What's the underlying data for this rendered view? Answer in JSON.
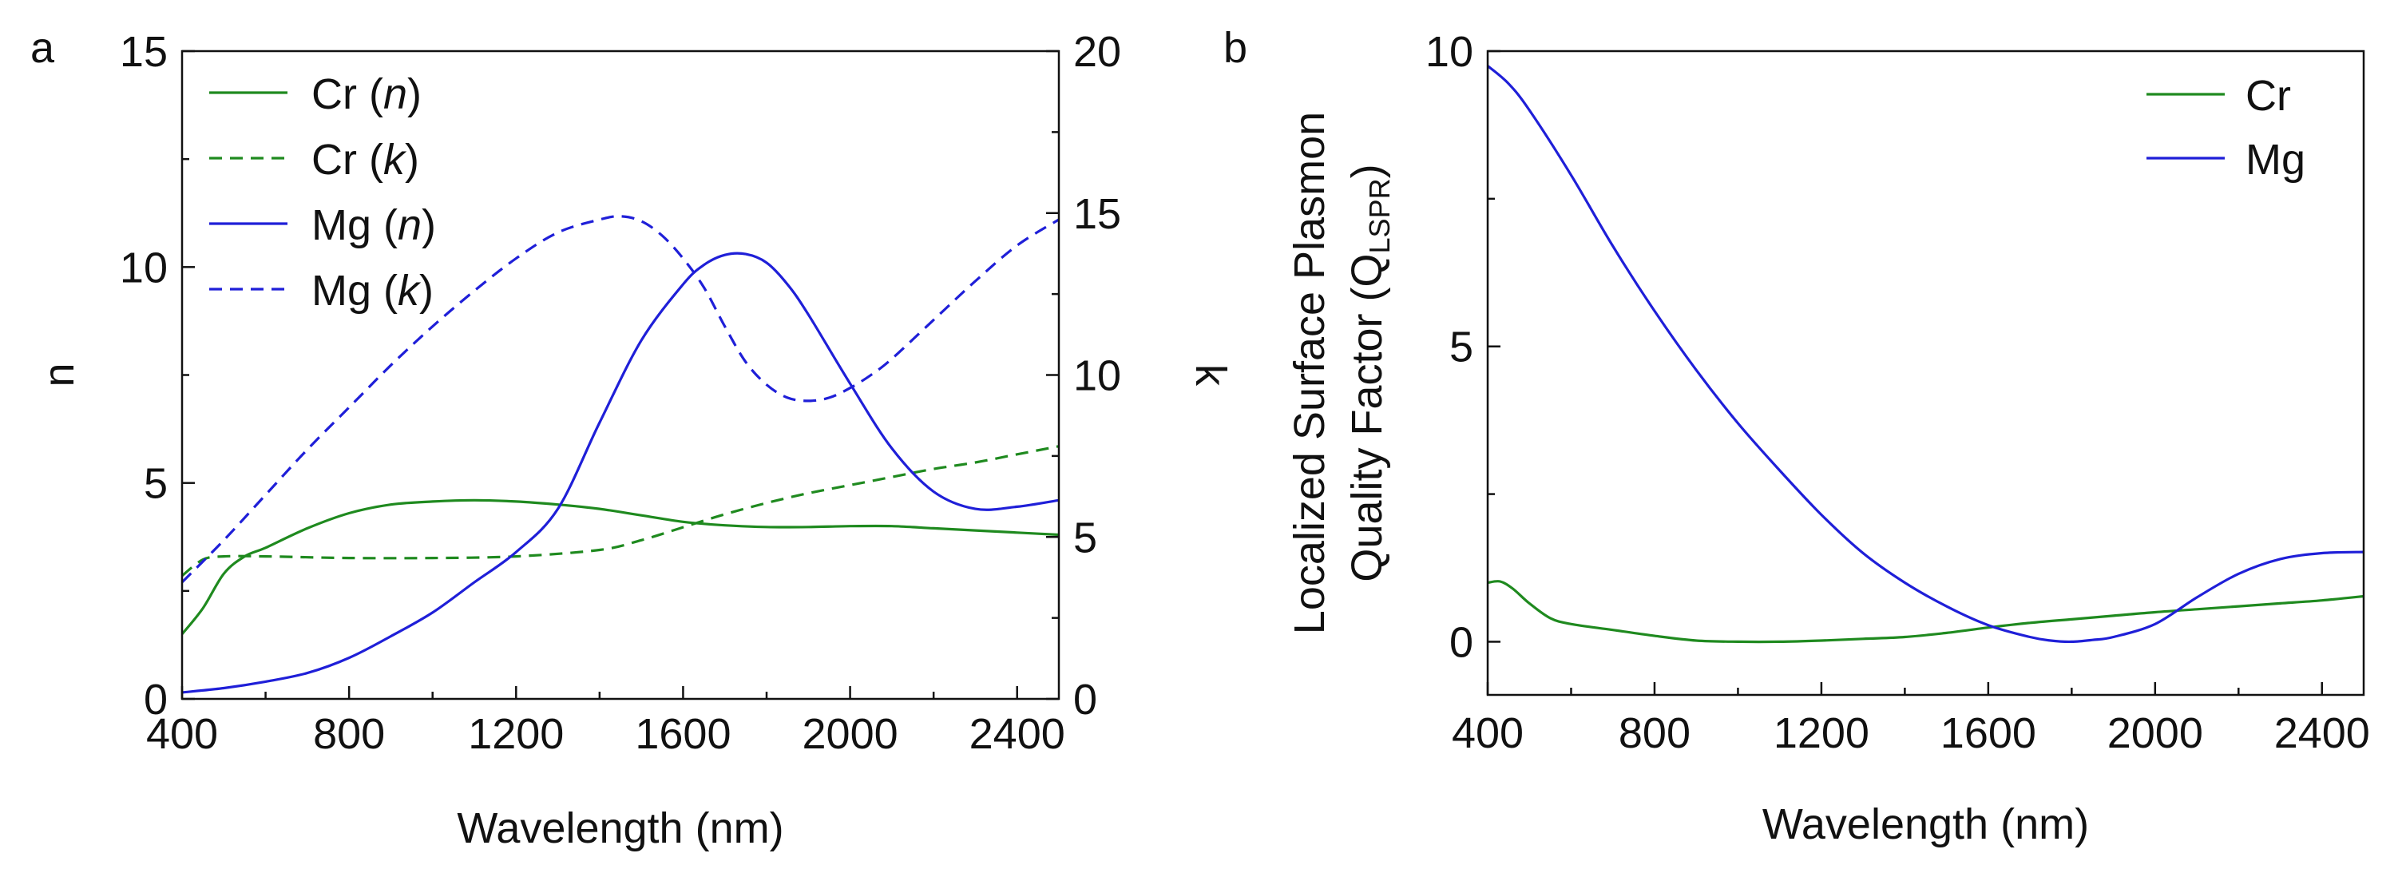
{
  "figure": {
    "panel_a_label": "a",
    "panel_b_label": "b"
  },
  "chart_data": [
    {
      "id": "a",
      "type": "line",
      "xlabel": "Wavelength (nm)",
      "ylabel": "n",
      "y2label": "k",
      "xlim": [
        400,
        2500
      ],
      "ylim": [
        0,
        15
      ],
      "y2lim": [
        0,
        20
      ],
      "xticks": [
        400,
        800,
        1200,
        1600,
        2000,
        2400
      ],
      "yticks": [
        0,
        5,
        10,
        15
      ],
      "y2ticks": [
        0,
        5,
        10,
        15,
        20
      ],
      "legend_position": "top-left",
      "series": [
        {
          "name": "Cr",
          "qualifier": "n",
          "axis": "left",
          "style": "solid",
          "color": "#1f8a1f",
          "x": [
            400,
            450,
            500,
            550,
            600,
            700,
            800,
            900,
            1000,
            1100,
            1200,
            1300,
            1400,
            1500,
            1600,
            1700,
            1800,
            1900,
            2000,
            2100,
            2200,
            2300,
            2400,
            2500
          ],
          "y": [
            1.5,
            2.1,
            2.9,
            3.3,
            3.5,
            3.95,
            4.3,
            4.5,
            4.57,
            4.6,
            4.57,
            4.5,
            4.4,
            4.25,
            4.1,
            4.02,
            3.98,
            3.98,
            4.0,
            4.0,
            3.95,
            3.9,
            3.85,
            3.8
          ]
        },
        {
          "name": "Cr",
          "qualifier": "k",
          "axis": "right",
          "style": "dashed",
          "color": "#1f8a1f",
          "x": [
            400,
            450,
            500,
            600,
            800,
            1000,
            1200,
            1400,
            1500,
            1600,
            1700,
            1800,
            1900,
            2000,
            2100,
            2200,
            2300,
            2400,
            2500
          ],
          "y": [
            3.8,
            4.3,
            4.4,
            4.4,
            4.35,
            4.35,
            4.4,
            4.6,
            4.9,
            5.3,
            5.7,
            6.05,
            6.35,
            6.6,
            6.85,
            7.1,
            7.3,
            7.55,
            7.8
          ]
        },
        {
          "name": "Mg",
          "qualifier": "n",
          "axis": "left",
          "style": "solid",
          "color": "#1f1fd8",
          "x": [
            400,
            500,
            600,
            700,
            800,
            900,
            1000,
            1100,
            1200,
            1300,
            1400,
            1500,
            1600,
            1650,
            1700,
            1750,
            1800,
            1850,
            1900,
            2000,
            2100,
            2200,
            2300,
            2400,
            2500
          ],
          "y": [
            0.15,
            0.25,
            0.4,
            0.6,
            0.95,
            1.45,
            2.0,
            2.7,
            3.4,
            4.4,
            6.4,
            8.3,
            9.6,
            10.05,
            10.28,
            10.3,
            10.1,
            9.6,
            8.9,
            7.3,
            5.8,
            4.8,
            4.4,
            4.45,
            4.6
          ]
        },
        {
          "name": "Mg",
          "qualifier": "k",
          "axis": "right",
          "style": "dashed",
          "color": "#1f1fd8",
          "x": [
            400,
            500,
            600,
            700,
            800,
            900,
            1000,
            1100,
            1200,
            1300,
            1400,
            1450,
            1500,
            1550,
            1600,
            1650,
            1700,
            1750,
            1800,
            1850,
            1900,
            1950,
            2000,
            2050,
            2100,
            2200,
            2300,
            2400,
            2500
          ],
          "y": [
            3.6,
            4.9,
            6.3,
            7.7,
            9.0,
            10.3,
            11.5,
            12.6,
            13.6,
            14.4,
            14.8,
            14.9,
            14.75,
            14.3,
            13.6,
            12.7,
            11.5,
            10.4,
            9.7,
            9.3,
            9.2,
            9.3,
            9.6,
            10.0,
            10.5,
            11.7,
            12.9,
            14.0,
            14.8
          ]
        }
      ]
    },
    {
      "id": "b",
      "type": "line",
      "xlabel": "Wavelength (nm)",
      "ylabel_line1": "Localized Surface Plasmon",
      "ylabel_line2": "Quality Factor (Q",
      "ylabel_subscript": "LSPR",
      "ylabel_close": ")",
      "xlim": [
        400,
        2500
      ],
      "ylim": [
        -0.9,
        10
      ],
      "xticks": [
        400,
        800,
        1200,
        1600,
        2000,
        2400
      ],
      "yticks": [
        0,
        5,
        10
      ],
      "legend_position": "top-right",
      "series": [
        {
          "name": "Cr",
          "color": "#1f8a1f",
          "x": [
            400,
            430,
            460,
            500,
            550,
            600,
            700,
            800,
            900,
            1000,
            1100,
            1200,
            1300,
            1400,
            1500,
            1600,
            1700,
            1800,
            1900,
            2000,
            2100,
            2200,
            2300,
            2400,
            2500
          ],
          "y": [
            1.0,
            1.02,
            0.9,
            0.65,
            0.4,
            0.3,
            0.2,
            0.1,
            0.02,
            0.0,
            0.0,
            0.02,
            0.05,
            0.08,
            0.15,
            0.24,
            0.32,
            0.38,
            0.44,
            0.5,
            0.55,
            0.6,
            0.65,
            0.7,
            0.77
          ]
        },
        {
          "name": "Mg",
          "color": "#1f1fd8",
          "x": [
            400,
            450,
            500,
            600,
            700,
            800,
            900,
            1000,
            1100,
            1200,
            1300,
            1400,
            1500,
            1600,
            1700,
            1750,
            1800,
            1850,
            1900,
            2000,
            2100,
            2200,
            2300,
            2400,
            2500
          ],
          "y": [
            9.75,
            9.45,
            9.0,
            7.9,
            6.7,
            5.6,
            4.6,
            3.7,
            2.9,
            2.15,
            1.5,
            1.0,
            0.6,
            0.28,
            0.08,
            0.02,
            0.0,
            0.03,
            0.08,
            0.3,
            0.75,
            1.15,
            1.4,
            1.5,
            1.52
          ]
        }
      ]
    }
  ]
}
